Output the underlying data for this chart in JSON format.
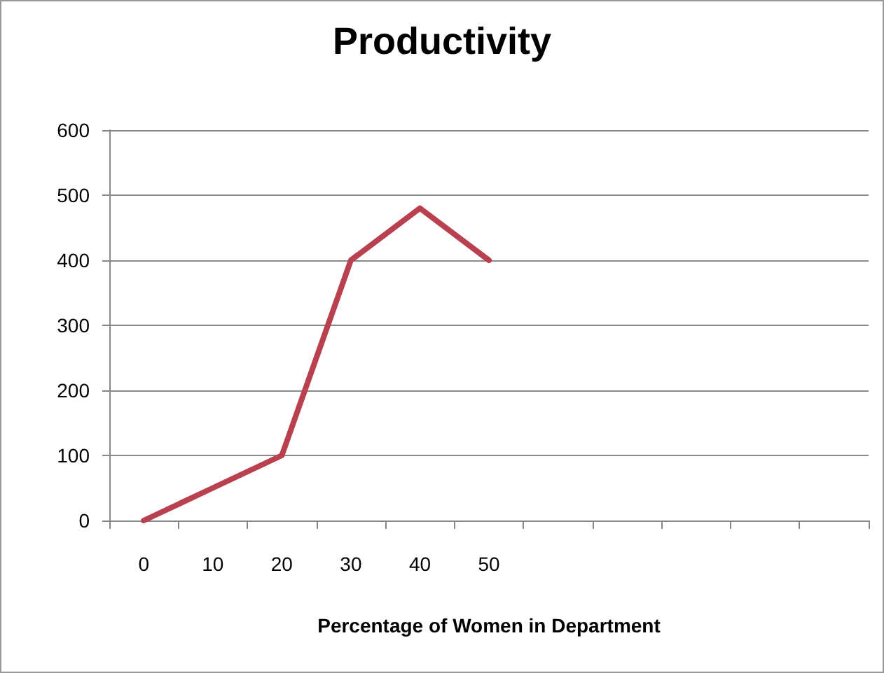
{
  "chart_data": {
    "type": "line",
    "title": "Productivity",
    "xlabel": "Percentage of Women in Department",
    "categories": [
      "0",
      "10",
      "20",
      "30",
      "40",
      "50",
      null,
      null,
      null,
      null,
      null
    ],
    "series": [
      {
        "color": "#b9404f",
        "values": [
          0,
          50,
          100,
          400,
          480,
          400,
          null,
          null,
          null,
          null,
          null
        ]
      }
    ],
    "ylim": [
      0,
      600
    ],
    "yticks": [
      0,
      100,
      200,
      300,
      400,
      500,
      600
    ],
    "grid": "y",
    "marker": "none",
    "line_style": "solid"
  }
}
